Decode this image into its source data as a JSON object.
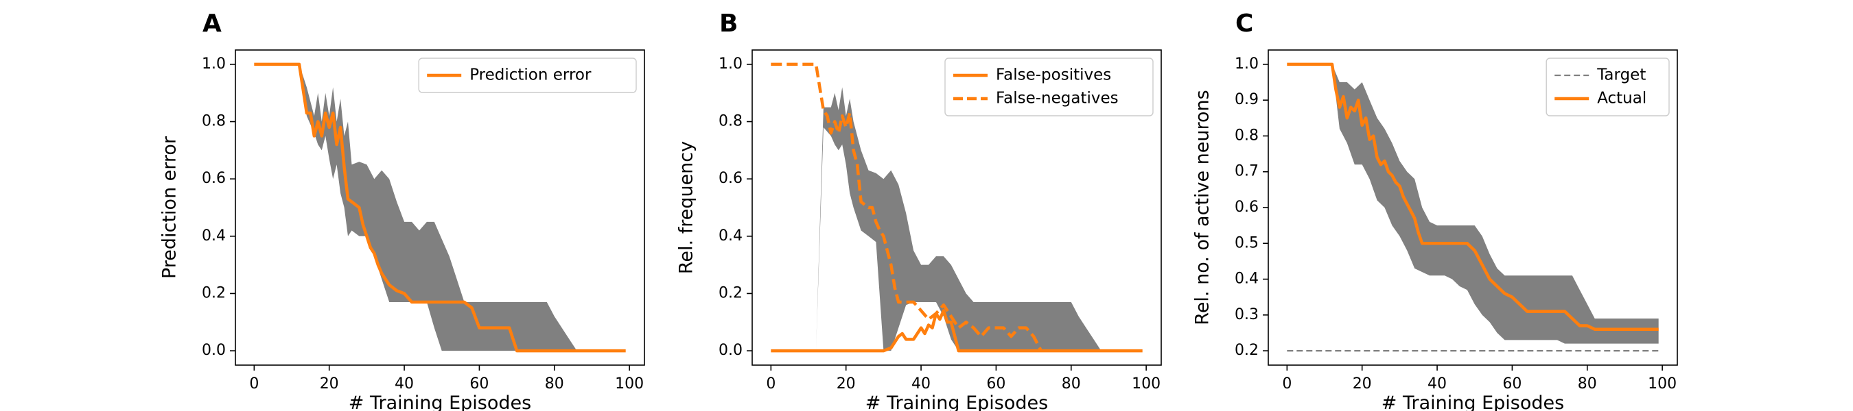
{
  "chart_data": [
    {
      "panel_label": "A",
      "type": "line",
      "xlabel": "# Training Episodes",
      "ylabel": "Prediction error",
      "xlim": [
        -5,
        104
      ],
      "ylim": [
        -0.05,
        1.05
      ],
      "xticks": [
        0,
        20,
        40,
        60,
        80,
        100
      ],
      "yticks": [
        0.0,
        0.2,
        0.4,
        0.6,
        0.8,
        1.0
      ],
      "xtick_labels": [
        "0",
        "20",
        "40",
        "60",
        "80",
        "100"
      ],
      "ytick_labels": [
        "0.0",
        "0.2",
        "0.4",
        "0.6",
        "0.8",
        "1.0"
      ],
      "grid": false,
      "legend": "upper-right",
      "band": {
        "color": "#808080",
        "x": [
          0,
          12,
          14,
          16,
          17,
          18,
          19,
          20,
          21,
          22,
          23,
          24,
          25,
          26,
          28,
          30,
          32,
          34,
          36,
          38,
          40,
          42,
          44,
          46,
          48,
          50,
          52,
          54,
          56,
          58,
          60,
          62,
          64,
          66,
          68,
          70,
          72,
          74,
          76,
          78,
          80,
          82,
          84,
          86,
          88,
          90,
          92,
          94,
          96,
          98,
          99
        ],
        "upper": [
          1.0,
          1.0,
          0.92,
          0.82,
          0.9,
          0.8,
          0.9,
          0.82,
          0.92,
          0.8,
          0.88,
          0.75,
          0.8,
          0.65,
          0.66,
          0.65,
          0.6,
          0.63,
          0.6,
          0.52,
          0.45,
          0.45,
          0.42,
          0.45,
          0.45,
          0.39,
          0.33,
          0.25,
          0.17,
          0.17,
          0.17,
          0.17,
          0.17,
          0.17,
          0.17,
          0.17,
          0.17,
          0.17,
          0.17,
          0.17,
          0.12,
          0.08,
          0.04,
          0.0,
          0.0,
          0.0,
          0.0,
          0.0,
          0.0,
          0.0,
          0.0
        ],
        "lower": [
          1.0,
          1.0,
          0.82,
          0.76,
          0.72,
          0.7,
          0.75,
          0.67,
          0.6,
          0.65,
          0.55,
          0.5,
          0.4,
          0.42,
          0.4,
          0.4,
          0.33,
          0.25,
          0.17,
          0.17,
          0.17,
          0.17,
          0.17,
          0.17,
          0.08,
          0.0,
          0.0,
          0.0,
          0.0,
          0.0,
          0.0,
          0.0,
          0.0,
          0.0,
          0.0,
          0.0,
          0.0,
          0.0,
          0.0,
          0.0,
          0.0,
          0.0,
          0.0,
          0.0,
          0.0,
          0.0,
          0.0,
          0.0,
          0.0,
          0.0,
          0.0
        ]
      },
      "series": [
        {
          "name": "Prediction error",
          "color": "#ff7f0e",
          "dash": "solid",
          "x": [
            0,
            12,
            14,
            15,
            16,
            17,
            18,
            19,
            20,
            21,
            22,
            23,
            24,
            25,
            26,
            28,
            29,
            30,
            31,
            32,
            33,
            34,
            36,
            38,
            40,
            42,
            44,
            46,
            48,
            50,
            52,
            54,
            56,
            58,
            60,
            62,
            64,
            66,
            68,
            70,
            72,
            76,
            80,
            84,
            88,
            92,
            96,
            99
          ],
          "y": [
            1.0,
            1.0,
            0.83,
            0.83,
            0.75,
            0.8,
            0.75,
            0.83,
            0.78,
            0.83,
            0.72,
            0.78,
            0.64,
            0.53,
            0.52,
            0.5,
            0.44,
            0.4,
            0.36,
            0.34,
            0.3,
            0.27,
            0.23,
            0.21,
            0.2,
            0.17,
            0.17,
            0.17,
            0.17,
            0.17,
            0.17,
            0.17,
            0.17,
            0.15,
            0.08,
            0.08,
            0.08,
            0.08,
            0.08,
            0.0,
            0.0,
            0.0,
            0.0,
            0.0,
            0.0,
            0.0,
            0.0,
            0.0
          ]
        }
      ]
    },
    {
      "panel_label": "B",
      "type": "line",
      "xlabel": "# Training Episodes",
      "ylabel": "Rel. frequency",
      "xlim": [
        -5,
        104
      ],
      "ylim": [
        -0.05,
        1.05
      ],
      "xticks": [
        0,
        20,
        40,
        60,
        80,
        100
      ],
      "yticks": [
        0.0,
        0.2,
        0.4,
        0.6,
        0.8,
        1.0
      ],
      "xtick_labels": [
        "0",
        "20",
        "40",
        "60",
        "80",
        "100"
      ],
      "ytick_labels": [
        "0.0",
        "0.2",
        "0.4",
        "0.6",
        "0.8",
        "1.0"
      ],
      "grid": false,
      "legend": "upper-right",
      "band": {
        "color": "#808080",
        "x": [
          0,
          10,
          12,
          14,
          16,
          17,
          18,
          19,
          20,
          21,
          22,
          24,
          26,
          28,
          30,
          32,
          34,
          36,
          38,
          40,
          42,
          44,
          46,
          48,
          50,
          52,
          54,
          56,
          58,
          60,
          64,
          68,
          72,
          76,
          80,
          82,
          84,
          86,
          88,
          92,
          96,
          99
        ],
        "upper": [
          0.0,
          0.0,
          0.0,
          0.85,
          0.85,
          0.9,
          0.84,
          0.92,
          0.82,
          0.88,
          0.8,
          0.7,
          0.63,
          0.62,
          0.6,
          0.63,
          0.58,
          0.48,
          0.35,
          0.3,
          0.3,
          0.33,
          0.33,
          0.3,
          0.25,
          0.2,
          0.17,
          0.17,
          0.17,
          0.17,
          0.17,
          0.17,
          0.17,
          0.17,
          0.17,
          0.12,
          0.08,
          0.04,
          0.0,
          0.0,
          0.0,
          0.0
        ],
        "lower": [
          0.0,
          0.0,
          0.0,
          0.78,
          0.75,
          0.72,
          0.7,
          0.72,
          0.65,
          0.55,
          0.5,
          0.42,
          0.4,
          0.38,
          0.0,
          0.0,
          0.08,
          0.16,
          0.17,
          0.17,
          0.17,
          0.17,
          0.12,
          0.04,
          0.0,
          0.0,
          0.0,
          0.0,
          0.0,
          0.0,
          0.0,
          0.0,
          0.0,
          0.0,
          0.0,
          0.0,
          0.0,
          0.0,
          0.0,
          0.0,
          0.0,
          0.0
        ]
      },
      "series": [
        {
          "name": "False-positives",
          "color": "#ff7f0e",
          "dash": "solid",
          "x": [
            0,
            30,
            32,
            34,
            35,
            36,
            38,
            40,
            41,
            42,
            43,
            44,
            45,
            46,
            47,
            48,
            49,
            50,
            52,
            60,
            70,
            80,
            90,
            99
          ],
          "y": [
            0.0,
            0.0,
            0.01,
            0.05,
            0.06,
            0.04,
            0.04,
            0.08,
            0.06,
            0.09,
            0.08,
            0.13,
            0.11,
            0.14,
            0.1,
            0.1,
            0.05,
            0.0,
            0.0,
            0.0,
            0.0,
            0.0,
            0.0,
            0.0
          ]
        },
        {
          "name": "False-negatives",
          "color": "#ff7f0e",
          "dash": "dashed",
          "x": [
            0,
            12,
            13,
            14,
            15,
            16,
            17,
            18,
            19,
            20,
            21,
            22,
            23,
            24,
            26,
            27,
            28,
            29,
            30,
            31,
            32,
            33,
            34,
            36,
            38,
            40,
            42,
            44,
            46,
            48,
            50,
            52,
            54,
            56,
            58,
            60,
            62,
            64,
            66,
            68,
            70,
            72
          ],
          "y": [
            1.0,
            1.0,
            0.92,
            0.84,
            0.82,
            0.76,
            0.8,
            0.76,
            0.82,
            0.78,
            0.83,
            0.7,
            0.65,
            0.52,
            0.5,
            0.5,
            0.45,
            0.42,
            0.4,
            0.35,
            0.3,
            0.22,
            0.17,
            0.17,
            0.17,
            0.14,
            0.11,
            0.13,
            0.16,
            0.12,
            0.08,
            0.1,
            0.08,
            0.05,
            0.08,
            0.08,
            0.08,
            0.05,
            0.08,
            0.08,
            0.05,
            0.0
          ]
        }
      ]
    },
    {
      "panel_label": "C",
      "type": "line",
      "xlabel": "# Training Episodes",
      "ylabel": "Rel. no. of active neurons",
      "xlim": [
        -5,
        104
      ],
      "ylim": [
        0.16,
        1.04
      ],
      "xticks": [
        0,
        20,
        40,
        60,
        80,
        100
      ],
      "yticks": [
        0.2,
        0.3,
        0.4,
        0.5,
        0.6,
        0.7,
        0.8,
        0.9,
        1.0
      ],
      "xtick_labels": [
        "0",
        "20",
        "40",
        "60",
        "80",
        "100"
      ],
      "ytick_labels": [
        "0.2",
        "0.3",
        "0.4",
        "0.5",
        "0.6",
        "0.7",
        "0.8",
        "0.9",
        "1.0"
      ],
      "grid": false,
      "legend": "upper-right",
      "band": {
        "color": "#808080",
        "x": [
          0,
          12,
          14,
          16,
          18,
          20,
          22,
          24,
          26,
          28,
          30,
          32,
          34,
          36,
          38,
          40,
          42,
          44,
          46,
          48,
          50,
          52,
          54,
          56,
          58,
          60,
          62,
          64,
          66,
          68,
          70,
          72,
          74,
          76,
          78,
          80,
          82,
          84,
          86,
          88,
          90,
          92,
          94,
          96,
          98,
          99
        ],
        "upper": [
          1.0,
          1.0,
          0.95,
          0.95,
          0.93,
          0.95,
          0.9,
          0.85,
          0.82,
          0.78,
          0.73,
          0.7,
          0.68,
          0.6,
          0.56,
          0.55,
          0.55,
          0.55,
          0.55,
          0.55,
          0.55,
          0.52,
          0.47,
          0.43,
          0.41,
          0.41,
          0.41,
          0.41,
          0.41,
          0.41,
          0.41,
          0.41,
          0.41,
          0.41,
          0.37,
          0.33,
          0.29,
          0.29,
          0.29,
          0.29,
          0.29,
          0.29,
          0.29,
          0.29,
          0.29,
          0.29
        ],
        "lower": [
          1.0,
          1.0,
          0.82,
          0.78,
          0.72,
          0.72,
          0.68,
          0.62,
          0.6,
          0.55,
          0.52,
          0.48,
          0.43,
          0.42,
          0.41,
          0.41,
          0.41,
          0.4,
          0.38,
          0.37,
          0.33,
          0.3,
          0.28,
          0.25,
          0.23,
          0.23,
          0.23,
          0.23,
          0.23,
          0.23,
          0.23,
          0.23,
          0.22,
          0.22,
          0.22,
          0.22,
          0.22,
          0.22,
          0.22,
          0.22,
          0.22,
          0.22,
          0.22,
          0.22,
          0.22,
          0.22
        ]
      },
      "series": [
        {
          "name": "Target",
          "color": "#808080",
          "dash": "dashed",
          "x": [
            0,
            99
          ],
          "y": [
            0.2,
            0.2
          ]
        },
        {
          "name": "Actual",
          "color": "#ff7f0e",
          "dash": "solid",
          "x": [
            0,
            12,
            13,
            14,
            15,
            16,
            17,
            18,
            19,
            20,
            21,
            22,
            23,
            24,
            25,
            26,
            27,
            28,
            29,
            30,
            31,
            32,
            33,
            34,
            35,
            36,
            38,
            40,
            42,
            44,
            46,
            48,
            50,
            52,
            54,
            56,
            58,
            60,
            62,
            64,
            66,
            68,
            70,
            72,
            74,
            76,
            78,
            80,
            82,
            84,
            86,
            88,
            90,
            92,
            94,
            96,
            98,
            99
          ],
          "y": [
            1.0,
            1.0,
            0.93,
            0.88,
            0.91,
            0.85,
            0.88,
            0.87,
            0.9,
            0.83,
            0.85,
            0.79,
            0.8,
            0.74,
            0.72,
            0.73,
            0.7,
            0.69,
            0.67,
            0.66,
            0.63,
            0.61,
            0.59,
            0.57,
            0.53,
            0.5,
            0.5,
            0.5,
            0.5,
            0.5,
            0.5,
            0.5,
            0.48,
            0.44,
            0.4,
            0.38,
            0.36,
            0.35,
            0.33,
            0.31,
            0.31,
            0.31,
            0.31,
            0.31,
            0.31,
            0.29,
            0.27,
            0.27,
            0.26,
            0.26,
            0.26,
            0.26,
            0.26,
            0.26,
            0.26,
            0.26,
            0.26,
            0.26
          ]
        }
      ]
    }
  ]
}
